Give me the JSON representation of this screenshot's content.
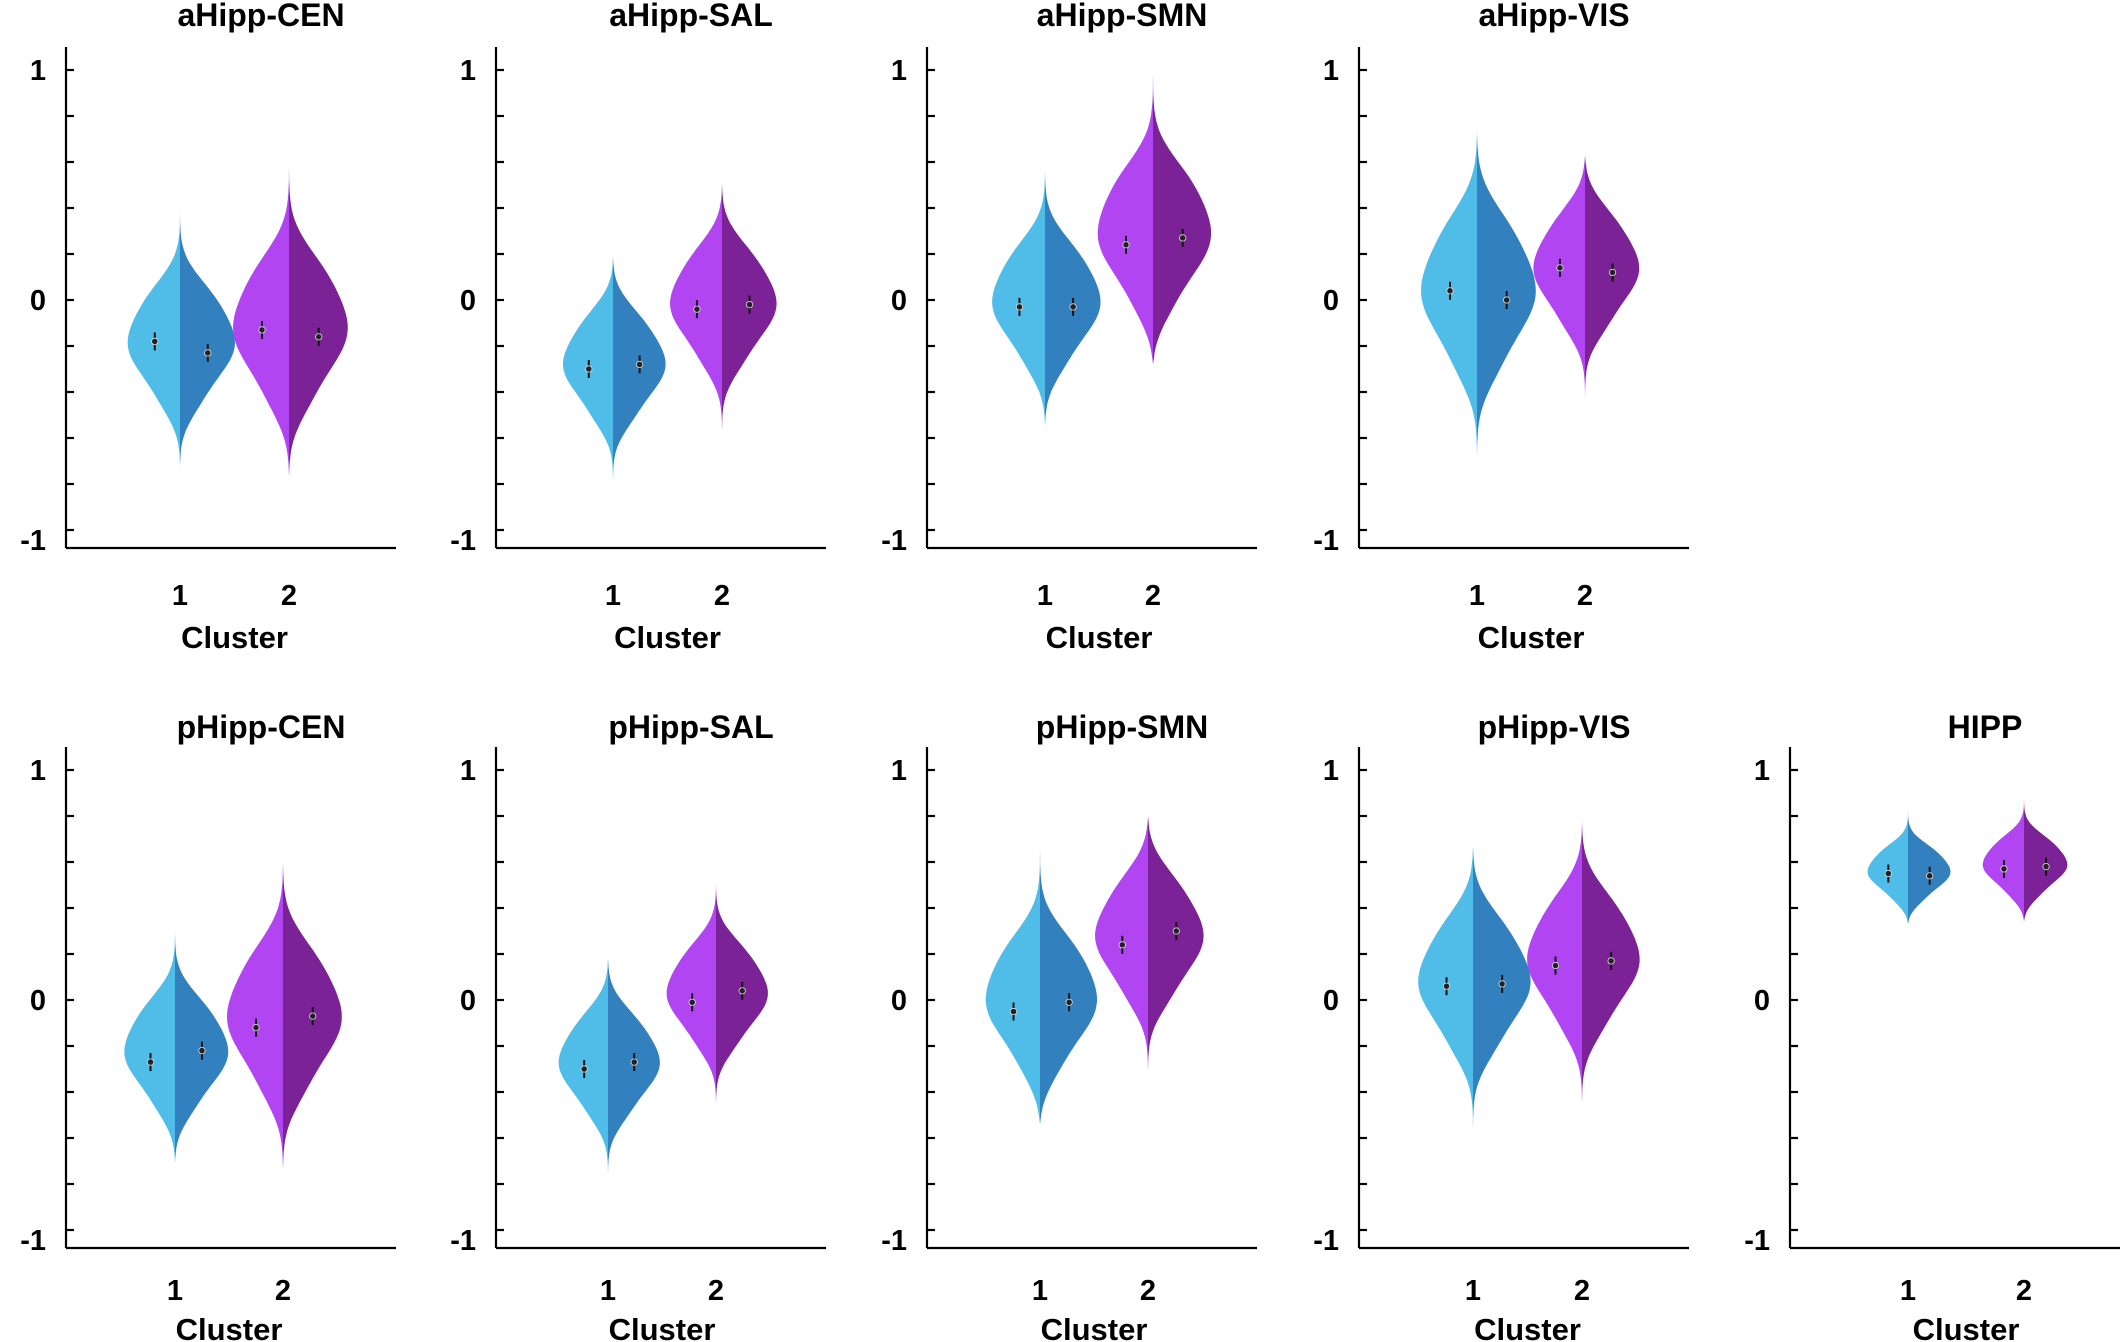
{
  "chart_data": {
    "type": "split-violin",
    "xlabel": "Cluster",
    "categories": [
      "1",
      "2"
    ],
    "yticks": [
      "1",
      "0",
      "-1"
    ],
    "ylim": [
      -1,
      1
    ],
    "colors": {
      "cluster1_left": "#4FBDE8",
      "cluster1_right": "#3380BF",
      "cluster2_left": "#B145F2",
      "cluster2_right": "#7A2296"
    },
    "panels": [
      {
        "title": "aHipp-CEN",
        "violins": [
          {
            "cluster": "1",
            "min": -0.72,
            "max": 0.38,
            "mean_left": -0.18,
            "mean_right": -0.23
          },
          {
            "cluster": "2",
            "min": -0.77,
            "max": 0.57,
            "mean_left": -0.13,
            "mean_right": -0.16
          }
        ]
      },
      {
        "title": "aHipp-SAL",
        "violins": [
          {
            "cluster": "1",
            "min": -0.8,
            "max": 0.19,
            "mean_left": -0.3,
            "mean_right": -0.28
          },
          {
            "cluster": "2",
            "min": -0.57,
            "max": 0.51,
            "mean_left": -0.04,
            "mean_right": -0.02
          }
        ]
      },
      {
        "title": "aHipp-SMN",
        "violins": [
          {
            "cluster": "1",
            "min": -0.55,
            "max": 0.58,
            "mean_left": -0.03,
            "mean_right": -0.03
          },
          {
            "cluster": "2",
            "min": -0.28,
            "max": 1.02,
            "mean_left": 0.24,
            "mean_right": 0.27
          }
        ]
      },
      {
        "title": "aHipp-VIS",
        "violins": [
          {
            "cluster": "1",
            "min": -0.68,
            "max": 0.74,
            "mean_left": 0.04,
            "mean_right": 0.0
          },
          {
            "cluster": "2",
            "min": -0.45,
            "max": 0.63,
            "mean_left": 0.14,
            "mean_right": 0.12
          }
        ]
      },
      {
        "title": "pHipp-CEN",
        "violins": [
          {
            "cluster": "1",
            "min": -0.71,
            "max": 0.31,
            "mean_left": -0.27,
            "mean_right": -0.22
          },
          {
            "cluster": "2",
            "min": -0.74,
            "max": 0.6,
            "mean_left": -0.12,
            "mean_right": -0.07
          }
        ]
      },
      {
        "title": "pHipp-SAL",
        "violins": [
          {
            "cluster": "1",
            "min": -0.76,
            "max": 0.19,
            "mean_left": -0.3,
            "mean_right": -0.27
          },
          {
            "cluster": "2",
            "min": -0.45,
            "max": 0.5,
            "mean_left": -0.01,
            "mean_right": 0.04
          }
        ]
      },
      {
        "title": "pHipp-SMN",
        "violins": [
          {
            "cluster": "1",
            "min": -0.54,
            "max": 0.69,
            "mean_left": -0.05,
            "mean_right": -0.01
          },
          {
            "cluster": "2",
            "min": -0.35,
            "max": 0.8,
            "mean_left": 0.24,
            "mean_right": 0.3
          }
        ]
      },
      {
        "title": "pHipp-VIS",
        "violins": [
          {
            "cluster": "1",
            "min": -0.56,
            "max": 0.67,
            "mean_left": 0.06,
            "mean_right": 0.07
          },
          {
            "cluster": "2",
            "min": -0.45,
            "max": 0.78,
            "mean_left": 0.15,
            "mean_right": 0.17
          }
        ]
      },
      {
        "title": "HIPP",
        "violins": [
          {
            "cluster": "1",
            "min": 0.33,
            "max": 0.84,
            "mean_left": 0.55,
            "mean_right": 0.54
          },
          {
            "cluster": "2",
            "min": 0.34,
            "max": 0.89,
            "mean_left": 0.57,
            "mean_right": 0.58
          }
        ]
      }
    ]
  }
}
